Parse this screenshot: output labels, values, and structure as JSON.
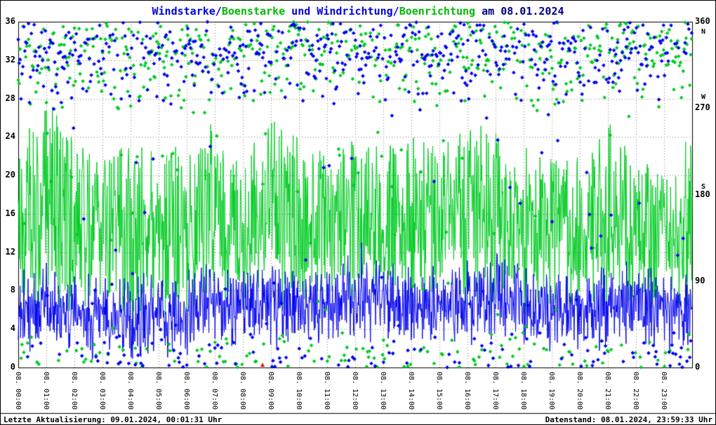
{
  "title_segments": [
    {
      "text": "Windstarke/",
      "color": "#0000dd"
    },
    {
      "text": "Boenstarke",
      "color": "#00bb00"
    },
    {
      "text": " und Windrichtung/",
      "color": "#0000dd"
    },
    {
      "text": "Boenrichtung",
      "color": "#00bb00"
    },
    {
      "text": " am 08.01.2024",
      "color": "#000080"
    }
  ],
  "footer": {
    "left": "Letzte Aktualisierung: 09.01.2024, 00:01:31 Uhr",
    "right": "Datenstand: 08.01.2024, 23:59:33 Uhr"
  },
  "chart_data": {
    "type": "line+scatter",
    "title": "Windstarke/Boenstarke und Windrichtung/Boenrichtung am 08.01.2024",
    "xlabel": "",
    "ylabel": "",
    "grid": true,
    "colors": {
      "wind": "#0000ee",
      "gust": "#00cc22",
      "grid": "#808080",
      "axis": "#000000",
      "background": "#ffffff"
    },
    "left_axis": {
      "min": 0,
      "max": 36,
      "step": 4,
      "ticks": [
        0,
        4,
        8,
        12,
        16,
        20,
        24,
        28,
        32,
        36
      ]
    },
    "right_axis": {
      "min": 0,
      "max": 360,
      "step": 90,
      "ticks": [
        0,
        90,
        180,
        270,
        360
      ],
      "compass": [
        {
          "label": "N",
          "deg": 349
        },
        {
          "label": "W",
          "deg": 281
        },
        {
          "label": "S",
          "deg": 188
        }
      ]
    },
    "x_tick_labels": [
      "08. 00:00",
      "08. 01:00",
      "08. 02:00",
      "08. 03:00",
      "08. 04:00",
      "08. 05:00",
      "08. 06:00",
      "08. 07:00",
      "08. 08:00",
      "08. 09:00",
      "08. 10:00",
      "08. 11:00",
      "08. 12:00",
      "08. 13:00",
      "08. 14:00",
      "08. 15:00",
      "08. 16:00",
      "08. 17:00",
      "08. 18:00",
      "08. 19:00",
      "08. 20:00",
      "08. 21:00",
      "08. 22:00",
      "08. 23:00"
    ],
    "series": [
      {
        "name": "Windstarke",
        "type": "line",
        "axis": "left",
        "color": "#0000ee",
        "hourly_mean": [
          6.0,
          6.5,
          5.5,
          5.5,
          5.0,
          5.5,
          6.0,
          7.0,
          6.5,
          6.5,
          7.0,
          6.5,
          7.0,
          7.0,
          6.5,
          6.5,
          7.0,
          7.5,
          6.5,
          6.0,
          6.0,
          6.5,
          6.5,
          6.0
        ]
      },
      {
        "name": "Boenstarke",
        "type": "line",
        "axis": "left",
        "color": "#00cc22",
        "hourly_max": [
          26,
          28,
          24,
          22,
          24,
          22,
          24,
          26,
          22,
          26,
          24,
          23,
          24,
          23,
          24,
          23,
          25,
          26,
          23,
          22,
          22,
          26,
          22,
          20
        ]
      },
      {
        "name": "Windrichtung",
        "type": "scatter",
        "axis": "right",
        "color": "#0000ee",
        "hourly_mean_deg": [
          335,
          330,
          335,
          340,
          335,
          330,
          335,
          330,
          335,
          340,
          335,
          330,
          335,
          335,
          330,
          335,
          340,
          335,
          330,
          335,
          335,
          330,
          335,
          340
        ]
      },
      {
        "name": "Boenrichtung",
        "type": "scatter",
        "axis": "right",
        "color": "#00cc22",
        "hourly_mean_deg": [
          335,
          335,
          330,
          340,
          335,
          335,
          330,
          335,
          340,
          335,
          330,
          335,
          340,
          335,
          335,
          330,
          335,
          340,
          335,
          330,
          335,
          340,
          335,
          330
        ]
      }
    ],
    "time_marker": {
      "hour": 8.7,
      "color": "#ff0000"
    },
    "render": {
      "seed": 1337,
      "minutes_per_day": 1440,
      "scatter_step_minutes": 2,
      "wind_noise_amplitude": 5,
      "gust_min_offset": 2.5,
      "direction_spread_deg": 70,
      "direction_outlier_fraction": 0.06
    }
  }
}
